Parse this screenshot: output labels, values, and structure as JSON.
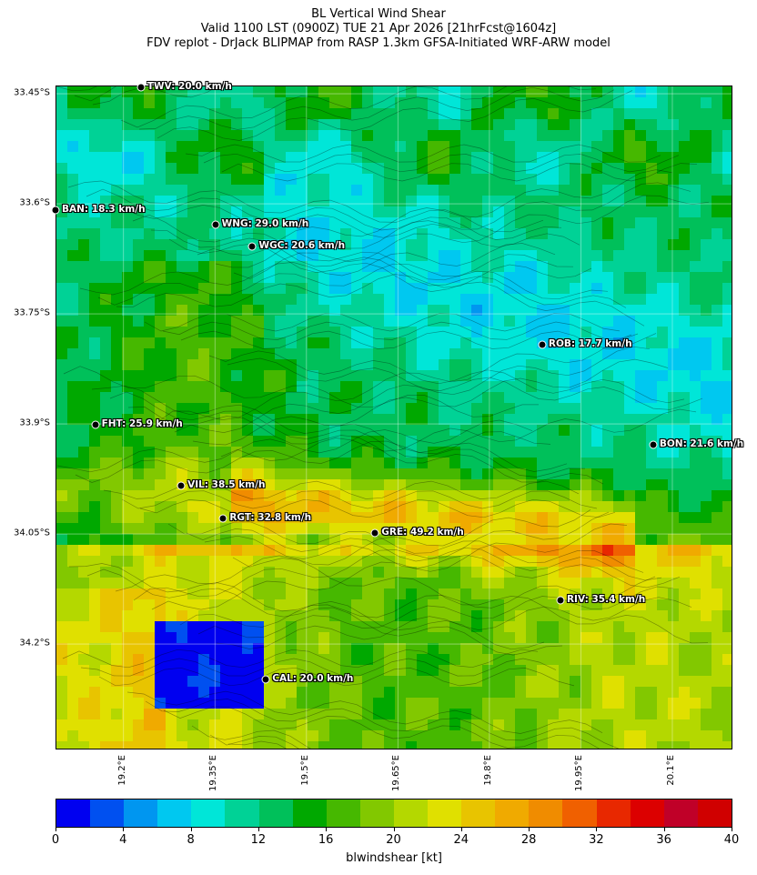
{
  "title": {
    "line1": "BL Vertical Wind Shear",
    "line2": "Valid 1100 LST (0900Z) TUE 21 Apr 2026 [21hrFcst@1604z]",
    "line3": "FDV replot - DrJack BLIPMAP from RASP 1.3km GFSA-Initiated WRF-ARW model"
  },
  "map": {
    "lat_labels": [
      "33.45°S",
      "33.6°S",
      "33.75°S",
      "33.9°S",
      "34.05°S",
      "34.2°S"
    ],
    "lon_labels": [
      "19.2°E",
      "19.35°E",
      "19.5°E",
      "19.65°E",
      "19.8°E",
      "19.95°E",
      "20.1°E"
    ],
    "lat_values": [
      -33.45,
      -33.6,
      -33.75,
      -33.9,
      -34.05,
      -34.2
    ],
    "lon_values": [
      19.2,
      19.35,
      19.5,
      19.65,
      19.8,
      19.95,
      20.1
    ],
    "extent": {
      "lon_min": 19.09,
      "lon_max": 20.2,
      "lat_max": -33.44,
      "lat_min": -34.345
    },
    "stations": [
      {
        "code": "TWV",
        "label": "TWV: 20.0 km/h",
        "lon": 19.23,
        "lat": -33.443
      },
      {
        "code": "BAN",
        "label": "BAN: 18.3 km/h",
        "lon": 19.09,
        "lat": -33.61
      },
      {
        "code": "WNG",
        "label": "WNG: 29.0 km/h",
        "lon": 19.352,
        "lat": -33.63
      },
      {
        "code": "WGC",
        "label": "WGC: 20.6 km/h",
        "lon": 19.413,
        "lat": -33.66
      },
      {
        "code": "ROB",
        "label": "ROB: 17.7 km/h",
        "lon": 19.888,
        "lat": -33.793
      },
      {
        "code": "FHT",
        "label": "FHT: 25.9 km/h",
        "lon": 19.155,
        "lat": -33.903
      },
      {
        "code": "BON",
        "label": "BON: 21.6 km/h",
        "lon": 20.07,
        "lat": -33.93
      },
      {
        "code": "VIL",
        "label": "VIL: 38.5 km/h",
        "lon": 19.296,
        "lat": -33.985
      },
      {
        "code": "RGT",
        "label": "RGT: 32.8 km/h",
        "lon": 19.365,
        "lat": -34.03
      },
      {
        "code": "GRE",
        "label": "GRE: 49.2 km/h",
        "lon": 19.614,
        "lat": -34.05
      },
      {
        "code": "RIV",
        "label": "RIV: 35.4 km/h",
        "lon": 19.918,
        "lat": -34.142
      },
      {
        "code": "CAL",
        "label": "CAL: 20.0 km/h",
        "lon": 19.435,
        "lat": -34.25
      }
    ]
  },
  "colorbar": {
    "label": "blwindshear [kt]",
    "min": 0,
    "max": 40,
    "tick_labels": [
      "0",
      "4",
      "8",
      "12",
      "16",
      "20",
      "24",
      "28",
      "32",
      "36",
      "40"
    ],
    "colors": [
      "#0000f0",
      "#0050f0",
      "#0096f0",
      "#00c8f0",
      "#00e6d8",
      "#00d296",
      "#00c05a",
      "#00a800",
      "#46b800",
      "#82c800",
      "#b4d800",
      "#e0e000",
      "#e8c400",
      "#f0aa00",
      "#f08c00",
      "#f06000",
      "#e82800",
      "#dc0000",
      "#c00028",
      "#d00000"
    ]
  }
}
